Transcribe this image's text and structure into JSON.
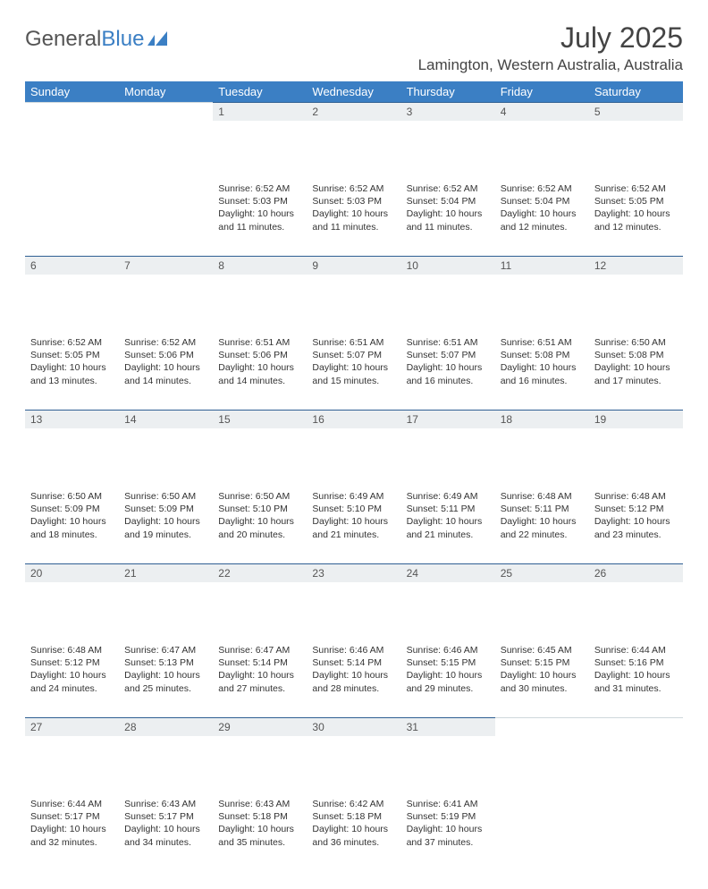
{
  "brand": {
    "text1": "General",
    "text2": "Blue"
  },
  "title": "July 2025",
  "location": "Lamington, Western Australia, Australia",
  "colors": {
    "header_bg": "#3b7fc4",
    "header_text": "#ffffff",
    "daynum_bg": "#eceff1",
    "daynum_border": "#2f5f93",
    "body_text": "#333333",
    "page_bg": "#ffffff"
  },
  "dayNames": [
    "Sunday",
    "Monday",
    "Tuesday",
    "Wednesday",
    "Thursday",
    "Friday",
    "Saturday"
  ],
  "weeks": [
    [
      {
        "day": "",
        "sunrise": "",
        "sunset": "",
        "daylight": ""
      },
      {
        "day": "",
        "sunrise": "",
        "sunset": "",
        "daylight": ""
      },
      {
        "day": "1",
        "sunrise": "6:52 AM",
        "sunset": "5:03 PM",
        "daylight": "10 hours and 11 minutes."
      },
      {
        "day": "2",
        "sunrise": "6:52 AM",
        "sunset": "5:03 PM",
        "daylight": "10 hours and 11 minutes."
      },
      {
        "day": "3",
        "sunrise": "6:52 AM",
        "sunset": "5:04 PM",
        "daylight": "10 hours and 11 minutes."
      },
      {
        "day": "4",
        "sunrise": "6:52 AM",
        "sunset": "5:04 PM",
        "daylight": "10 hours and 12 minutes."
      },
      {
        "day": "5",
        "sunrise": "6:52 AM",
        "sunset": "5:05 PM",
        "daylight": "10 hours and 12 minutes."
      }
    ],
    [
      {
        "day": "6",
        "sunrise": "6:52 AM",
        "sunset": "5:05 PM",
        "daylight": "10 hours and 13 minutes."
      },
      {
        "day": "7",
        "sunrise": "6:52 AM",
        "sunset": "5:06 PM",
        "daylight": "10 hours and 14 minutes."
      },
      {
        "day": "8",
        "sunrise": "6:51 AM",
        "sunset": "5:06 PM",
        "daylight": "10 hours and 14 minutes."
      },
      {
        "day": "9",
        "sunrise": "6:51 AM",
        "sunset": "5:07 PM",
        "daylight": "10 hours and 15 minutes."
      },
      {
        "day": "10",
        "sunrise": "6:51 AM",
        "sunset": "5:07 PM",
        "daylight": "10 hours and 16 minutes."
      },
      {
        "day": "11",
        "sunrise": "6:51 AM",
        "sunset": "5:08 PM",
        "daylight": "10 hours and 16 minutes."
      },
      {
        "day": "12",
        "sunrise": "6:50 AM",
        "sunset": "5:08 PM",
        "daylight": "10 hours and 17 minutes."
      }
    ],
    [
      {
        "day": "13",
        "sunrise": "6:50 AM",
        "sunset": "5:09 PM",
        "daylight": "10 hours and 18 minutes."
      },
      {
        "day": "14",
        "sunrise": "6:50 AM",
        "sunset": "5:09 PM",
        "daylight": "10 hours and 19 minutes."
      },
      {
        "day": "15",
        "sunrise": "6:50 AM",
        "sunset": "5:10 PM",
        "daylight": "10 hours and 20 minutes."
      },
      {
        "day": "16",
        "sunrise": "6:49 AM",
        "sunset": "5:10 PM",
        "daylight": "10 hours and 21 minutes."
      },
      {
        "day": "17",
        "sunrise": "6:49 AM",
        "sunset": "5:11 PM",
        "daylight": "10 hours and 21 minutes."
      },
      {
        "day": "18",
        "sunrise": "6:48 AM",
        "sunset": "5:11 PM",
        "daylight": "10 hours and 22 minutes."
      },
      {
        "day": "19",
        "sunrise": "6:48 AM",
        "sunset": "5:12 PM",
        "daylight": "10 hours and 23 minutes."
      }
    ],
    [
      {
        "day": "20",
        "sunrise": "6:48 AM",
        "sunset": "5:12 PM",
        "daylight": "10 hours and 24 minutes."
      },
      {
        "day": "21",
        "sunrise": "6:47 AM",
        "sunset": "5:13 PM",
        "daylight": "10 hours and 25 minutes."
      },
      {
        "day": "22",
        "sunrise": "6:47 AM",
        "sunset": "5:14 PM",
        "daylight": "10 hours and 27 minutes."
      },
      {
        "day": "23",
        "sunrise": "6:46 AM",
        "sunset": "5:14 PM",
        "daylight": "10 hours and 28 minutes."
      },
      {
        "day": "24",
        "sunrise": "6:46 AM",
        "sunset": "5:15 PM",
        "daylight": "10 hours and 29 minutes."
      },
      {
        "day": "25",
        "sunrise": "6:45 AM",
        "sunset": "5:15 PM",
        "daylight": "10 hours and 30 minutes."
      },
      {
        "day": "26",
        "sunrise": "6:44 AM",
        "sunset": "5:16 PM",
        "daylight": "10 hours and 31 minutes."
      }
    ],
    [
      {
        "day": "27",
        "sunrise": "6:44 AM",
        "sunset": "5:17 PM",
        "daylight": "10 hours and 32 minutes."
      },
      {
        "day": "28",
        "sunrise": "6:43 AM",
        "sunset": "5:17 PM",
        "daylight": "10 hours and 34 minutes."
      },
      {
        "day": "29",
        "sunrise": "6:43 AM",
        "sunset": "5:18 PM",
        "daylight": "10 hours and 35 minutes."
      },
      {
        "day": "30",
        "sunrise": "6:42 AM",
        "sunset": "5:18 PM",
        "daylight": "10 hours and 36 minutes."
      },
      {
        "day": "31",
        "sunrise": "6:41 AM",
        "sunset": "5:19 PM",
        "daylight": "10 hours and 37 minutes."
      },
      {
        "day": "",
        "sunrise": "",
        "sunset": "",
        "daylight": ""
      },
      {
        "day": "",
        "sunrise": "",
        "sunset": "",
        "daylight": ""
      }
    ]
  ],
  "labels": {
    "sunrise": "Sunrise:",
    "sunset": "Sunset:",
    "daylight": "Daylight:"
  }
}
